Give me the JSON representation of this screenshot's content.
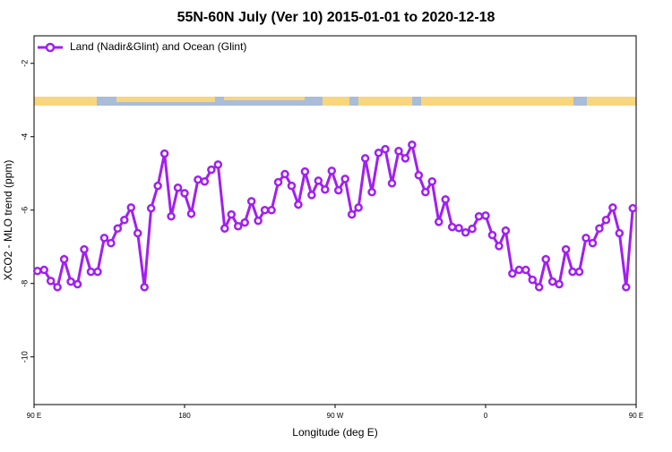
{
  "chart_data": {
    "type": "line",
    "title": "55N-60N July (Ver 10)   2015-01-01 to 2020-12-18",
    "xlabel": "Longitude (deg E)",
    "ylabel": "XCO2 - MLO trend (ppm)",
    "x": [
      92,
      96,
      100,
      104,
      108,
      112,
      116,
      120,
      124,
      128,
      132,
      136,
      140,
      144,
      148,
      152,
      156,
      160,
      164,
      168,
      172,
      176,
      180,
      184,
      188,
      192,
      196,
      200,
      204,
      208,
      212,
      216,
      220,
      224,
      228,
      232,
      236,
      240,
      244,
      248,
      252,
      256,
      260,
      264,
      268,
      272,
      276,
      280,
      284,
      288,
      292,
      296,
      300,
      304,
      308,
      312,
      316,
      320,
      324,
      328,
      332,
      336,
      340,
      344,
      348,
      352,
      356,
      360,
      364,
      368,
      372,
      376,
      380,
      384,
      388,
      392,
      396,
      400,
      404,
      408,
      412,
      416,
      420,
      424,
      428,
      432,
      436,
      440,
      444,
      448
    ],
    "series": [
      {
        "name": "Land (Nadir&Glint) and Ocean (Glint)",
        "color": "#a020f0",
        "values": [
          -7.66,
          -7.63,
          -7.93,
          -8.1,
          -7.34,
          -7.95,
          -8.02,
          -7.07,
          -7.68,
          -7.68,
          -6.76,
          -6.9,
          -6.5,
          -6.27,
          -5.93,
          -6.63,
          -8.1,
          -5.95,
          -5.34,
          -4.46,
          -6.17,
          -5.39,
          -5.54,
          -6.1,
          -5.17,
          -5.22,
          -4.9,
          -4.76,
          -6.5,
          -6.12,
          -6.44,
          -6.34,
          -5.76,
          -6.29,
          -6.0,
          -6.0,
          -5.24,
          -5.02,
          -5.34,
          -5.85,
          -4.95,
          -5.59,
          -5.2,
          -5.44,
          -4.93,
          -5.46,
          -5.15,
          -6.12,
          -5.93,
          -4.59,
          -5.51,
          -4.44,
          -4.34,
          -5.27,
          -4.39,
          -4.59,
          -4.22,
          -5.05,
          -5.51,
          -5.22,
          -6.32,
          -5.71,
          -6.46,
          -6.49,
          -6.61,
          -6.51,
          -6.17,
          -6.15,
          -6.68,
          -6.98,
          -6.56,
          -7.73,
          -7.63,
          -7.63,
          -7.9,
          -8.1,
          -7.34,
          -7.95,
          -8.02,
          -7.07,
          -7.68,
          -7.68,
          -6.76,
          -6.9,
          -6.5,
          -6.27,
          -5.93,
          -6.63,
          -8.1,
          -5.95
        ]
      }
    ],
    "xlim": [
      90,
      450
    ],
    "xticks": [
      {
        "value": 90,
        "label": "90 E"
      },
      180,
      {
        "value": 270,
        "label": "90 W"
      },
      {
        "value": 360,
        "label": "0"
      },
      {
        "value": 450,
        "label": "90 E"
      },
      540
    ],
    "ylim": [
      -11.3,
      -1.25
    ],
    "yticks": [
      -2,
      -4,
      -6,
      -8,
      -10
    ],
    "legend": "top-left"
  }
}
